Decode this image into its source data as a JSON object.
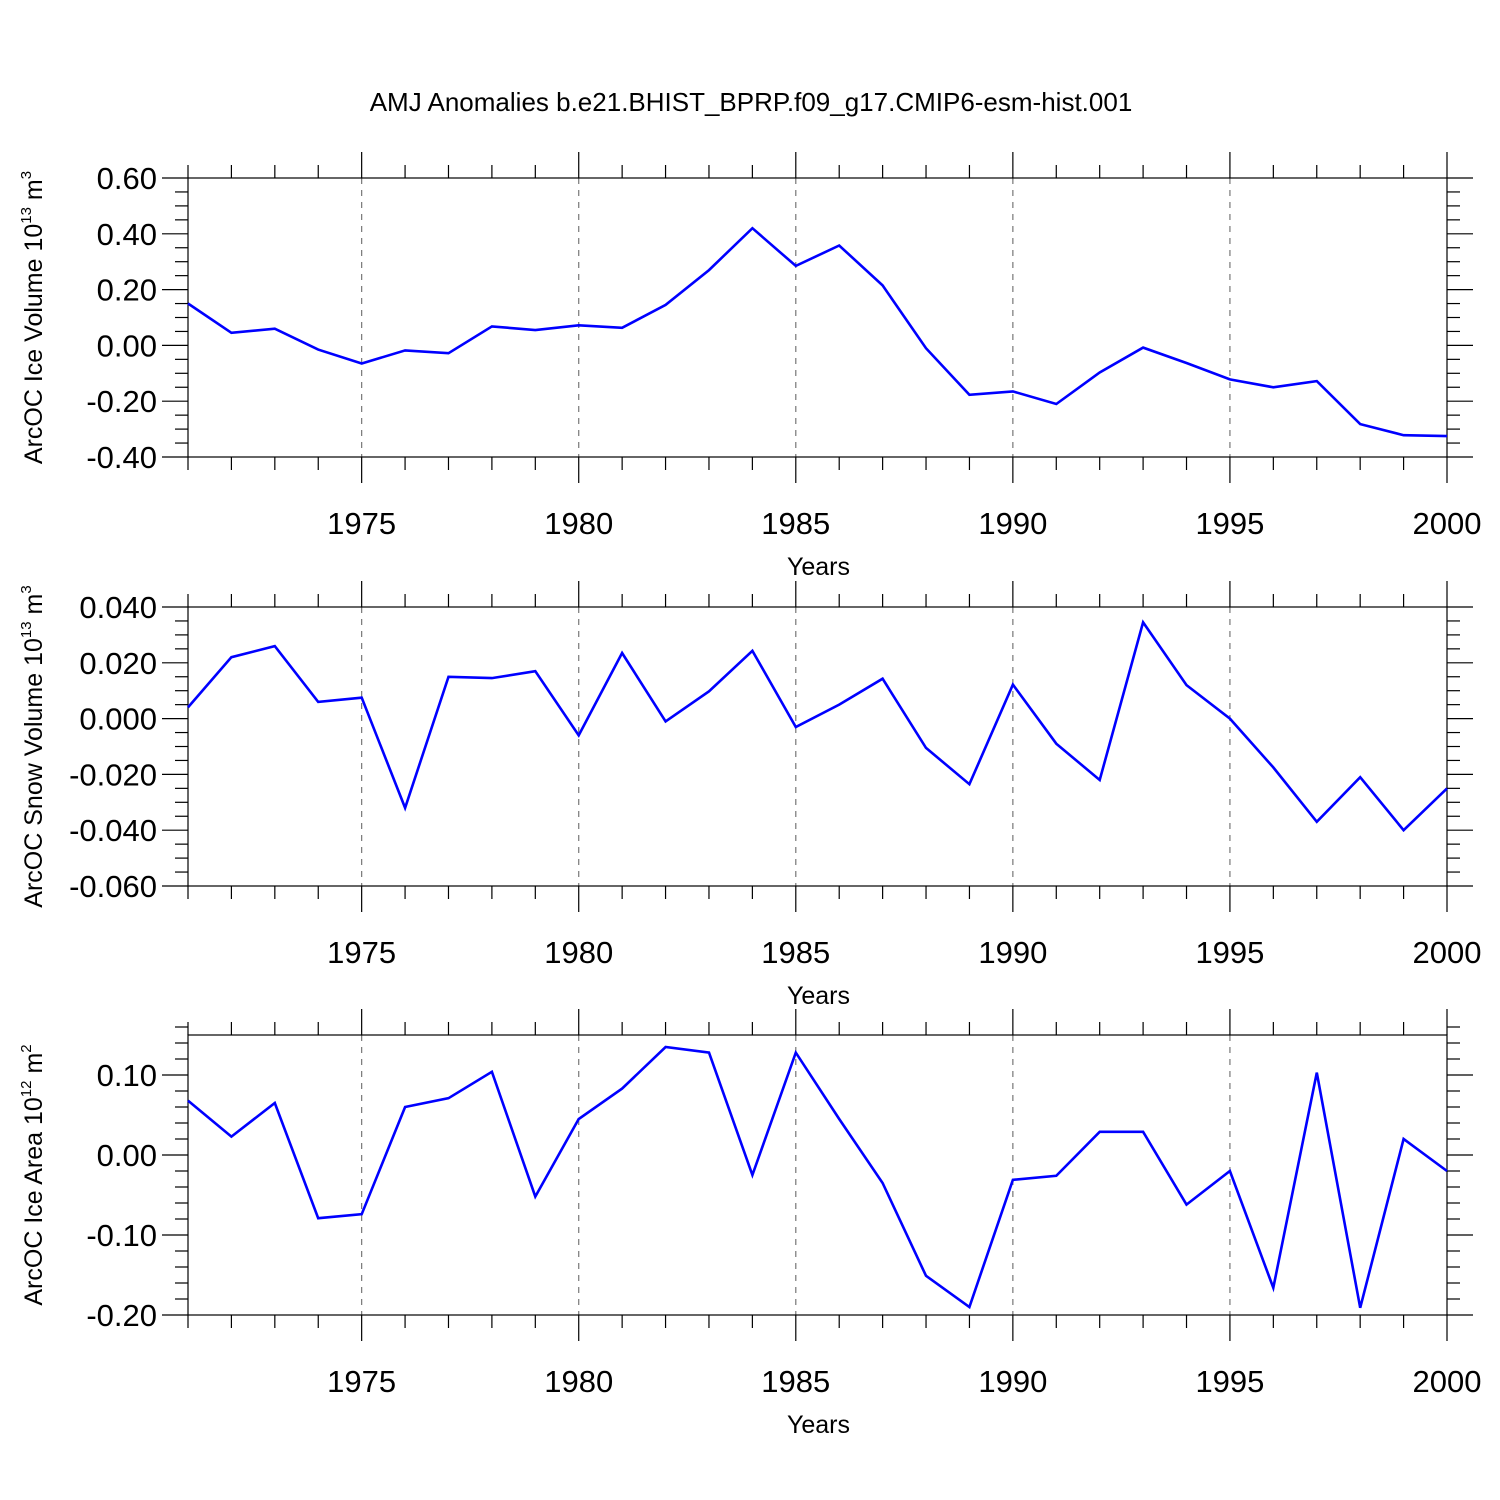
{
  "title": "AMJ Anomalies b.e21.BHIST_BPRP.f09_g17.CMIP6-esm-hist.001",
  "colors": {
    "series": "#0000ff",
    "axis": "#000000",
    "grid": "#777777",
    "background": "#ffffff"
  },
  "chart_data": [
    {
      "type": "line",
      "xlabel": "Years",
      "ylabel": {
        "text": "ArcOC Ice Volume 10",
        "sup": "13",
        "unit": " m",
        "unit_sup": "3"
      },
      "xlim": [
        1971,
        2000
      ],
      "ylim": [
        -0.4,
        0.6
      ],
      "xticks": [
        1975,
        1980,
        1985,
        1990,
        1995,
        2000
      ],
      "xtick_labels": [
        "1975",
        "1980",
        "1985",
        "1990",
        "1995",
        "2000"
      ],
      "yticks": [
        -0.4,
        -0.2,
        0.0,
        0.2,
        0.4,
        0.6
      ],
      "ytick_labels": [
        "-0.40",
        "-0.20",
        "0.00",
        "0.20",
        "0.40",
        "0.60"
      ],
      "y_minor_step": 0.05,
      "grid": "dashed vertical at major x ticks",
      "x": [
        1971,
        1972,
        1973,
        1974,
        1975,
        1976,
        1977,
        1978,
        1979,
        1980,
        1981,
        1982,
        1983,
        1984,
        1985,
        1986,
        1987,
        1988,
        1989,
        1990,
        1991,
        1992,
        1993,
        1994,
        1995,
        1996,
        1997,
        1998,
        1999,
        2000
      ],
      "values": [
        0.15,
        0.045,
        0.06,
        -0.015,
        -0.065,
        -0.018,
        -0.028,
        0.068,
        0.055,
        0.072,
        0.063,
        0.145,
        0.27,
        0.42,
        0.285,
        0.358,
        0.215,
        -0.01,
        -0.177,
        -0.165,
        -0.21,
        -0.097,
        -0.008,
        -0.063,
        -0.122,
        -0.15,
        -0.128,
        -0.282,
        -0.322,
        -0.325
      ]
    },
    {
      "type": "line",
      "xlabel": "Years",
      "ylabel": {
        "text": "ArcOC Snow Volume 10",
        "sup": "13",
        "unit": " m",
        "unit_sup": "3"
      },
      "xlim": [
        1971,
        2000
      ],
      "ylim": [
        -0.06,
        0.04
      ],
      "xticks": [
        1975,
        1980,
        1985,
        1990,
        1995,
        2000
      ],
      "xtick_labels": [
        "1975",
        "1980",
        "1985",
        "1990",
        "1995",
        "2000"
      ],
      "yticks": [
        -0.06,
        -0.04,
        -0.02,
        0.0,
        0.02,
        0.04
      ],
      "ytick_labels": [
        "-0.060",
        "-0.040",
        "-0.020",
        "0.000",
        "0.020",
        "0.040"
      ],
      "y_minor_step": 0.005,
      "grid": "dashed vertical at major x ticks",
      "x": [
        1971,
        1972,
        1973,
        1974,
        1975,
        1976,
        1977,
        1978,
        1979,
        1980,
        1981,
        1982,
        1983,
        1984,
        1985,
        1986,
        1987,
        1988,
        1989,
        1990,
        1991,
        1992,
        1993,
        1994,
        1995,
        1996,
        1997,
        1998,
        1999,
        2000
      ],
      "values": [
        0.004,
        0.022,
        0.026,
        0.006,
        0.0075,
        -0.032,
        0.015,
        0.0145,
        0.017,
        -0.006,
        0.0235,
        -0.001,
        0.0098,
        0.0243,
        -0.003,
        0.005,
        0.0143,
        -0.0105,
        -0.0235,
        0.0122,
        -0.009,
        -0.022,
        0.0345,
        0.012,
        0.0,
        -0.0175,
        -0.037,
        -0.021,
        -0.04,
        -0.025
      ]
    },
    {
      "type": "line",
      "xlabel": "Years",
      "ylabel": {
        "text": "ArcOC Ice Area 10",
        "sup": "12",
        "unit": " m",
        "unit_sup": "2"
      },
      "xlim": [
        1971,
        2000
      ],
      "ylim": [
        -0.2,
        0.15
      ],
      "xticks": [
        1975,
        1980,
        1985,
        1990,
        1995,
        2000
      ],
      "xtick_labels": [
        "1975",
        "1980",
        "1985",
        "1990",
        "1995",
        "2000"
      ],
      "yticks": [
        -0.2,
        -0.1,
        0.0,
        0.1
      ],
      "ytick_labels": [
        "-0.20",
        "-0.10",
        "0.00",
        "0.10"
      ],
      "y_minor_step": 0.02,
      "grid": "dashed vertical at major x ticks",
      "x": [
        1971,
        1972,
        1973,
        1974,
        1975,
        1976,
        1977,
        1978,
        1979,
        1980,
        1981,
        1982,
        1983,
        1984,
        1985,
        1986,
        1987,
        1988,
        1989,
        1990,
        1991,
        1992,
        1993,
        1994,
        1995,
        1996,
        1997,
        1998,
        1999,
        2000
      ],
      "values": [
        0.068,
        0.023,
        0.065,
        -0.079,
        -0.074,
        0.06,
        0.071,
        0.104,
        -0.052,
        0.045,
        0.083,
        0.135,
        0.128,
        -0.025,
        0.128,
        0.045,
        -0.035,
        -0.151,
        -0.19,
        -0.031,
        -0.026,
        0.029,
        0.029,
        -0.062,
        -0.02,
        -0.166,
        0.103,
        -0.191,
        0.02,
        -0.02
      ]
    }
  ]
}
